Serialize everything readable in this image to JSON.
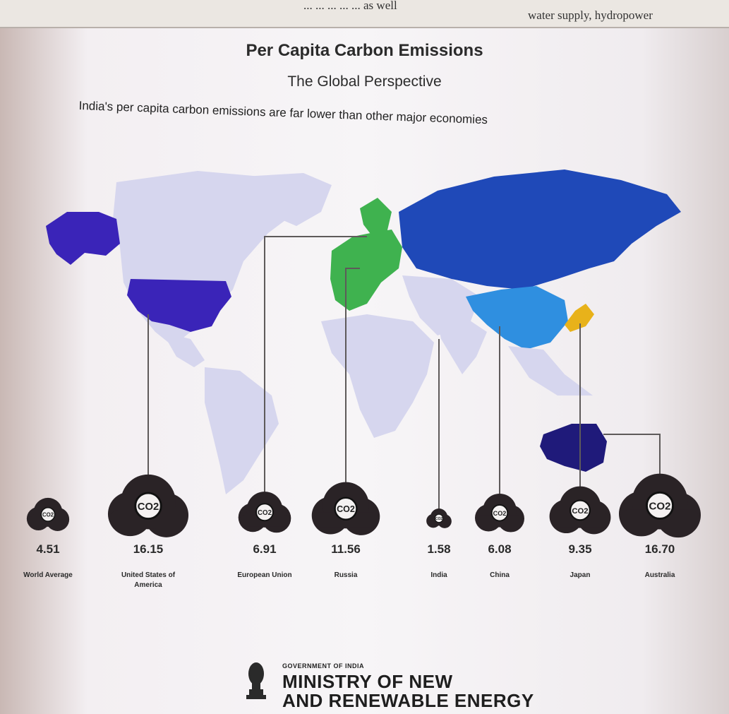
{
  "book": {
    "left_text": "... ... ... ... ... as well",
    "right_text": "water supply, hydropower"
  },
  "header": {
    "title": "Per Capita Carbon Emissions",
    "subtitle": "The Global Perspective",
    "caption": "India's per capita carbon emissions are far lower than other major economies"
  },
  "colors": {
    "usa": "#3a24b8",
    "eu": "#3fb24f",
    "russia": "#1f49b8",
    "china": "#2f8fe0",
    "japan": "#e8b21a",
    "australia": "#1f1a7a",
    "other_land": "#d6d6ee",
    "cloud": "#2a2326"
  },
  "chart_data": {
    "type": "bar",
    "encoding": "cloud icon size",
    "unit_icon_label": "CO2",
    "categories": [
      "World Average",
      "United States of America",
      "European Union",
      "Russia",
      "India",
      "China",
      "Japan",
      "Australia"
    ],
    "values": [
      4.51,
      16.15,
      6.91,
      11.56,
      1.58,
      6.08,
      9.35,
      16.7
    ],
    "value_labels": [
      "4.51",
      "16.15",
      "6.91",
      "11.56",
      "1.58",
      "6.08",
      "9.35",
      "16.70"
    ]
  },
  "footer": {
    "small": "GOVERNMENT OF INDIA",
    "line1": "MINISTRY OF NEW",
    "line2": "AND RENEWABLE ENERGY"
  }
}
